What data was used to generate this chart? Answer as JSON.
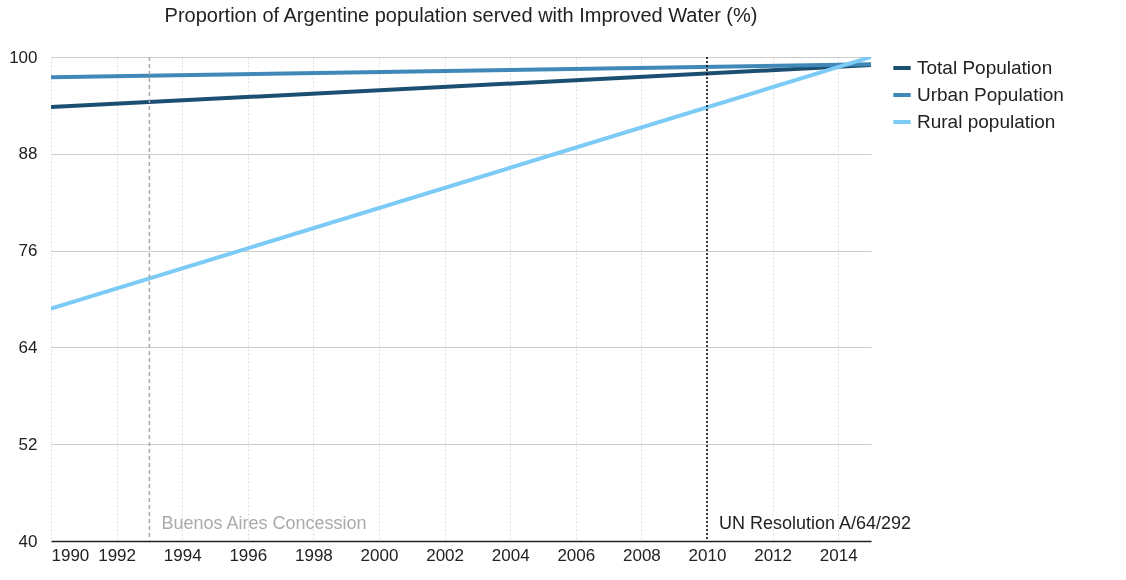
{
  "chart_data": {
    "type": "line",
    "title": "Proportion of Argentine population served with Improved Water (%)",
    "x": [
      1990,
      2015
    ],
    "series": [
      {
        "name": "Total Population",
        "color": "#1b4f72",
        "values": [
          93.8,
          99.0
        ]
      },
      {
        "name": "Urban Population",
        "color": "#3f88b8",
        "values": [
          97.5,
          99.1
        ]
      },
      {
        "name": "Rural population",
        "color": "#7ccbf7",
        "values": [
          68.8,
          100.0
        ]
      }
    ],
    "xlim": [
      1990,
      2015
    ],
    "xticks": [
      1990,
      1992,
      1994,
      1996,
      1998,
      2000,
      2002,
      2004,
      2006,
      2008,
      2010,
      2012,
      2014
    ],
    "ylim": [
      40,
      100
    ],
    "yticks": [
      40,
      52,
      64,
      76,
      88,
      100
    ],
    "ref_lines": [
      {
        "axis": "x",
        "value": 1993,
        "label": "Buenos Aires Concession",
        "color": "#aaaaaa",
        "line_style": "dashed"
      },
      {
        "axis": "x",
        "value": 2010,
        "label": "UN Resolution A/64/292",
        "color": "#000000",
        "line_style": "dotted"
      }
    ],
    "grid": true,
    "legend": "right",
    "marker": "none",
    "line_style": "solid"
  }
}
